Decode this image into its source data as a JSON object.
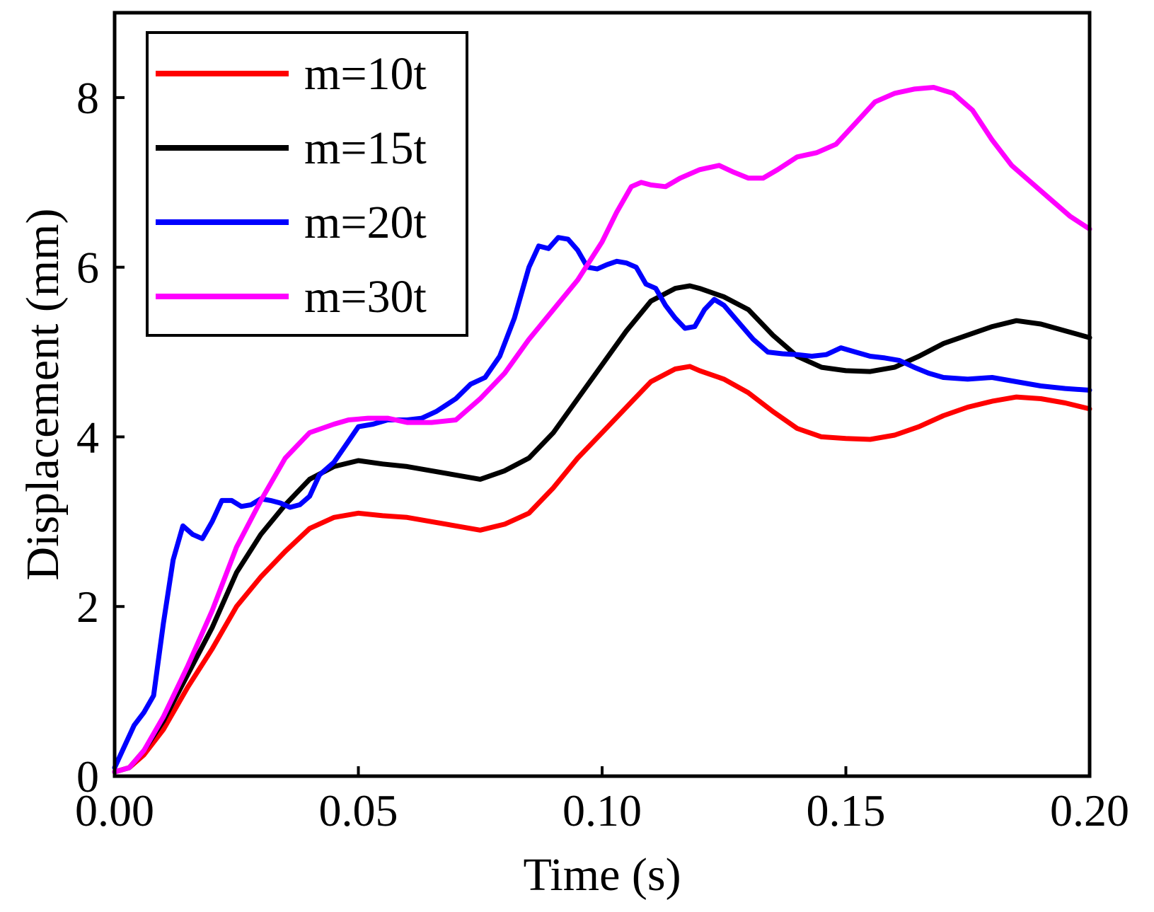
{
  "chart_data": {
    "type": "line",
    "title": "",
    "xlabel": "Time (s)",
    "ylabel": "Displacement (mm)",
    "xlim": [
      0,
      0.2
    ],
    "ylim": [
      0,
      9
    ],
    "xticks": [
      0,
      0.05,
      0.1,
      0.15,
      0.2
    ],
    "xtick_labels": [
      "0.00",
      "0.05",
      "0.10",
      "0.15",
      "0.20"
    ],
    "yticks": [
      0,
      2,
      4,
      6,
      8
    ],
    "ytick_labels": [
      "0",
      "2",
      "4",
      "6",
      "8"
    ],
    "grid": false,
    "legend_position": "top-left",
    "series": [
      {
        "name": "m=10t",
        "color": "#ff0000",
        "x": [
          0,
          0.003,
          0.006,
          0.01,
          0.015,
          0.02,
          0.025,
          0.03,
          0.035,
          0.04,
          0.045,
          0.05,
          0.055,
          0.06,
          0.065,
          0.07,
          0.075,
          0.08,
          0.085,
          0.09,
          0.095,
          0.1,
          0.105,
          0.11,
          0.115,
          0.118,
          0.12,
          0.125,
          0.13,
          0.135,
          0.14,
          0.145,
          0.15,
          0.155,
          0.16,
          0.165,
          0.17,
          0.175,
          0.18,
          0.185,
          0.19,
          0.195,
          0.2
        ],
        "y": [
          0.05,
          0.1,
          0.25,
          0.55,
          1.05,
          1.5,
          2.0,
          2.35,
          2.65,
          2.92,
          3.05,
          3.1,
          3.07,
          3.05,
          3.0,
          2.95,
          2.9,
          2.97,
          3.1,
          3.4,
          3.75,
          4.05,
          4.35,
          4.65,
          4.8,
          4.83,
          4.78,
          4.68,
          4.52,
          4.3,
          4.1,
          4.0,
          3.98,
          3.97,
          4.02,
          4.12,
          4.25,
          4.35,
          4.42,
          4.47,
          4.45,
          4.4,
          4.33
        ]
      },
      {
        "name": "m=15t",
        "color": "#000000",
        "x": [
          0,
          0.003,
          0.006,
          0.01,
          0.015,
          0.02,
          0.025,
          0.03,
          0.035,
          0.04,
          0.045,
          0.05,
          0.055,
          0.06,
          0.065,
          0.07,
          0.075,
          0.08,
          0.085,
          0.09,
          0.095,
          0.1,
          0.105,
          0.11,
          0.115,
          0.118,
          0.12,
          0.125,
          0.13,
          0.135,
          0.14,
          0.145,
          0.15,
          0.155,
          0.16,
          0.165,
          0.17,
          0.175,
          0.18,
          0.185,
          0.19,
          0.195,
          0.2
        ],
        "y": [
          0.05,
          0.1,
          0.3,
          0.65,
          1.2,
          1.75,
          2.4,
          2.85,
          3.2,
          3.5,
          3.65,
          3.72,
          3.68,
          3.65,
          3.6,
          3.55,
          3.5,
          3.6,
          3.75,
          4.05,
          4.45,
          4.85,
          5.25,
          5.6,
          5.75,
          5.78,
          5.75,
          5.65,
          5.5,
          5.2,
          4.95,
          4.82,
          4.78,
          4.77,
          4.82,
          4.95,
          5.1,
          5.2,
          5.3,
          5.37,
          5.33,
          5.25,
          5.17
        ]
      },
      {
        "name": "m=20t",
        "color": "#0000ff",
        "x": [
          0,
          0.002,
          0.004,
          0.006,
          0.008,
          0.01,
          0.012,
          0.014,
          0.016,
          0.018,
          0.02,
          0.022,
          0.024,
          0.026,
          0.028,
          0.03,
          0.032,
          0.034,
          0.036,
          0.038,
          0.04,
          0.042,
          0.045,
          0.048,
          0.05,
          0.053,
          0.056,
          0.06,
          0.063,
          0.066,
          0.07,
          0.073,
          0.076,
          0.079,
          0.082,
          0.085,
          0.087,
          0.089,
          0.091,
          0.093,
          0.095,
          0.097,
          0.099,
          0.101,
          0.103,
          0.105,
          0.107,
          0.109,
          0.111,
          0.113,
          0.115,
          0.117,
          0.119,
          0.121,
          0.123,
          0.125,
          0.128,
          0.131,
          0.134,
          0.137,
          0.14,
          0.143,
          0.146,
          0.149,
          0.152,
          0.155,
          0.158,
          0.161,
          0.164,
          0.167,
          0.17,
          0.175,
          0.18,
          0.185,
          0.19,
          0.195,
          0.2
        ],
        "y": [
          0.1,
          0.35,
          0.6,
          0.75,
          0.95,
          1.8,
          2.55,
          2.95,
          2.85,
          2.8,
          3.0,
          3.25,
          3.25,
          3.18,
          3.2,
          3.27,
          3.25,
          3.22,
          3.17,
          3.2,
          3.3,
          3.55,
          3.7,
          3.95,
          4.12,
          4.15,
          4.2,
          4.2,
          4.22,
          4.3,
          4.45,
          4.62,
          4.7,
          4.95,
          5.4,
          6.0,
          6.25,
          6.22,
          6.35,
          6.33,
          6.2,
          6.0,
          5.98,
          6.03,
          6.07,
          6.05,
          6.0,
          5.8,
          5.75,
          5.55,
          5.4,
          5.28,
          5.3,
          5.5,
          5.62,
          5.55,
          5.35,
          5.15,
          5.0,
          4.98,
          4.97,
          4.95,
          4.97,
          5.05,
          5.0,
          4.95,
          4.93,
          4.9,
          4.82,
          4.75,
          4.7,
          4.68,
          4.7,
          4.65,
          4.6,
          4.57,
          4.55
        ]
      },
      {
        "name": "m=30t",
        "color": "#ff00ff",
        "x": [
          0,
          0.003,
          0.006,
          0.01,
          0.015,
          0.02,
          0.025,
          0.03,
          0.035,
          0.04,
          0.045,
          0.048,
          0.052,
          0.056,
          0.06,
          0.065,
          0.07,
          0.075,
          0.08,
          0.085,
          0.09,
          0.095,
          0.1,
          0.103,
          0.106,
          0.108,
          0.11,
          0.113,
          0.116,
          0.12,
          0.124,
          0.127,
          0.13,
          0.133,
          0.136,
          0.14,
          0.144,
          0.148,
          0.152,
          0.156,
          0.16,
          0.164,
          0.168,
          0.172,
          0.176,
          0.18,
          0.184,
          0.188,
          0.192,
          0.196,
          0.2
        ],
        "y": [
          0.05,
          0.1,
          0.3,
          0.7,
          1.3,
          1.95,
          2.7,
          3.25,
          3.75,
          4.05,
          4.15,
          4.2,
          4.22,
          4.22,
          4.17,
          4.17,
          4.2,
          4.45,
          4.75,
          5.15,
          5.5,
          5.85,
          6.3,
          6.65,
          6.95,
          7.0,
          6.97,
          6.95,
          7.05,
          7.15,
          7.2,
          7.12,
          7.05,
          7.05,
          7.15,
          7.3,
          7.35,
          7.45,
          7.7,
          7.95,
          8.05,
          8.1,
          8.12,
          8.05,
          7.85,
          7.5,
          7.2,
          7.0,
          6.8,
          6.6,
          6.45
        ]
      }
    ]
  }
}
